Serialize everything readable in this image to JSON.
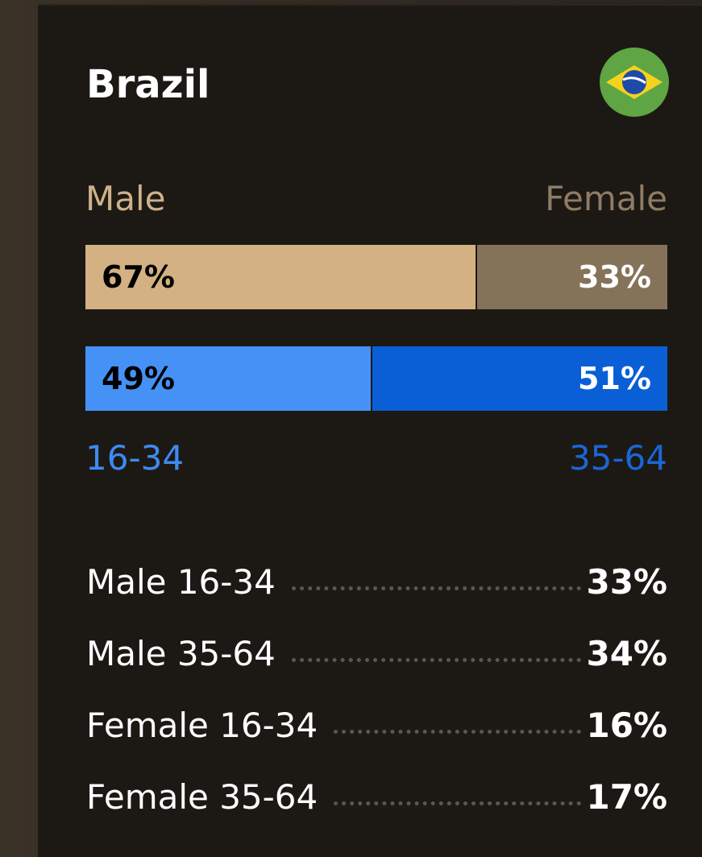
{
  "title": "Brazil",
  "gender": {
    "labels": [
      "Male",
      "Female"
    ],
    "values": [
      67,
      33
    ],
    "value_labels": [
      "67%",
      "33%"
    ],
    "colors": [
      "#d4b183",
      "#857359"
    ],
    "label_colors": [
      "#cfb189",
      "#8f7c64"
    ]
  },
  "age": {
    "labels": [
      "16-34",
      "35-64"
    ],
    "values": [
      49,
      51
    ],
    "value_labels": [
      "49%",
      "51%"
    ],
    "colors": [
      "#4591f6",
      "#0a5fd6"
    ],
    "label_colors": [
      "#3d8bf2",
      "#1a66d6"
    ]
  },
  "breakdown": [
    {
      "label": "Male 16-34",
      "value": "33%"
    },
    {
      "label": "Male 35-64",
      "value": "34%"
    },
    {
      "label": "Female 16-34",
      "value": "16%"
    },
    {
      "label": "Female 35-64",
      "value": "17%"
    }
  ]
}
